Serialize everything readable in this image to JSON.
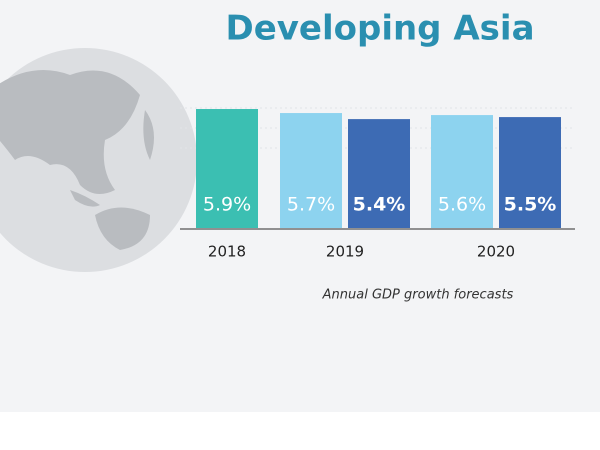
{
  "chart_data": {
    "type": "bar",
    "title": "Developing Asia",
    "caption": "Annual GDP growth forecasts",
    "categories": [
      "2018",
      "2019",
      "2020"
    ],
    "series": [
      {
        "color": "#3bbfb2",
        "values": [
          5.9,
          null,
          null
        ],
        "value_labels": [
          "5.9%",
          null,
          null
        ]
      },
      {
        "color": "#8dd3ef",
        "values": [
          null,
          5.7,
          5.6
        ],
        "value_labels": [
          null,
          "5.7%",
          "5.6%"
        ]
      },
      {
        "color": "#3d6bb4",
        "values": [
          null,
          5.4,
          5.5
        ],
        "value_labels": [
          null,
          "5.4%",
          "5.5%"
        ]
      }
    ],
    "ylim": [
      0,
      6
    ]
  }
}
